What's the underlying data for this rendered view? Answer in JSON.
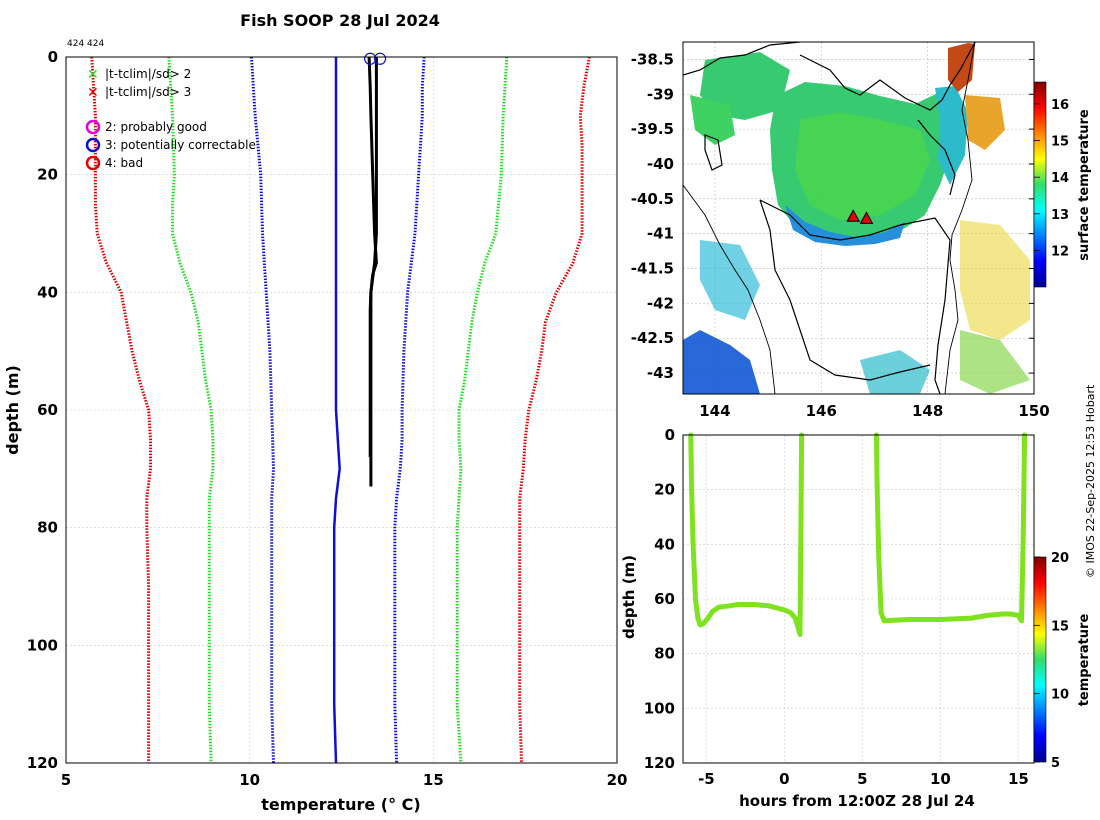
{
  "figure": {
    "title": "Fish SOOP 28 Jul 2024",
    "id_text": "424 424",
    "copyright": "© IMOS 22-Sep-2025 12:53 Hobart"
  },
  "colors": {
    "red": "#e00000",
    "green": "#22dd22",
    "blue": "#1010d0",
    "black": "#000000",
    "magenta": "#e000e0",
    "trace": "#7ee21e",
    "land": "#ffffff"
  },
  "chart_data": [
    {
      "type": "line",
      "name": "profile",
      "xlabel": "temperature (° C)",
      "ylabel": "depth (m)",
      "xlim": [
        5,
        20
      ],
      "ylim": [
        120,
        0
      ],
      "xticks": [
        5,
        10,
        15,
        20
      ],
      "yticks": [
        0,
        20,
        40,
        60,
        80,
        100,
        120
      ],
      "grid": true,
      "legend": {
        "markers": [
          {
            "symbol": "x",
            "label": "|t-tclim|/sd> 2",
            "color": "#22dd22"
          },
          {
            "symbol": "x",
            "label": "|t-tclim|/sd> 3",
            "color": "#e00000"
          }
        ],
        "flags": [
          {
            "symbol": "circle",
            "label": "2: probably good",
            "color": "#e000e0"
          },
          {
            "symbol": "circle",
            "label": "3: potentially correctable",
            "color": "#1010d0"
          },
          {
            "symbol": "circle",
            "label": "4: bad",
            "color": "#e00000"
          }
        ]
      },
      "series": [
        {
          "name": "clim -3sd",
          "color": "#e00000",
          "style": "dotted",
          "depth": [
            0,
            5,
            10,
            20,
            25,
            30,
            35,
            40,
            45,
            50,
            55,
            60,
            65,
            70,
            75,
            80,
            90,
            100,
            110,
            120
          ],
          "temp": [
            5.7,
            5.75,
            5.8,
            5.8,
            5.8,
            5.85,
            6.1,
            6.5,
            6.65,
            6.8,
            7.0,
            7.25,
            7.3,
            7.3,
            7.2,
            7.2,
            7.25,
            7.25,
            7.25,
            7.25
          ]
        },
        {
          "name": "clim -2sd",
          "color": "#22dd22",
          "style": "dotted",
          "depth": [
            0,
            5,
            10,
            20,
            25,
            30,
            35,
            40,
            45,
            50,
            55,
            60,
            65,
            70,
            75,
            80,
            90,
            100,
            110,
            120
          ],
          "temp": [
            7.8,
            7.85,
            7.9,
            7.95,
            7.9,
            7.9,
            8.1,
            8.4,
            8.6,
            8.7,
            8.8,
            8.95,
            9.0,
            9.0,
            8.9,
            8.9,
            8.9,
            8.9,
            8.9,
            8.95
          ]
        },
        {
          "name": "clim -1sd",
          "color": "#1010d0",
          "style": "dotted",
          "depth": [
            0,
            5,
            10,
            20,
            30,
            40,
            50,
            60,
            70,
            75,
            80,
            90,
            100,
            110,
            120
          ],
          "temp": [
            10.05,
            10.1,
            10.15,
            10.3,
            10.35,
            10.45,
            10.55,
            10.6,
            10.65,
            10.6,
            10.6,
            10.6,
            10.6,
            10.6,
            10.65
          ]
        },
        {
          "name": "clim mean",
          "color": "#1010d0",
          "style": "solid",
          "depth": [
            0,
            10,
            20,
            30,
            40,
            50,
            60,
            65,
            70,
            75,
            80,
            90,
            100,
            110,
            120
          ],
          "temp": [
            12.35,
            12.35,
            12.35,
            12.35,
            12.35,
            12.35,
            12.35,
            12.4,
            12.45,
            12.35,
            12.3,
            12.3,
            12.3,
            12.3,
            12.35
          ]
        },
        {
          "name": "clim +1sd",
          "color": "#1010d0",
          "style": "dotted",
          "depth": [
            0,
            5,
            10,
            20,
            30,
            40,
            50,
            60,
            65,
            70,
            75,
            80,
            90,
            100,
            110,
            120
          ],
          "temp": [
            14.75,
            14.7,
            14.7,
            14.6,
            14.5,
            14.3,
            14.2,
            14.15,
            14.15,
            14.1,
            14.0,
            13.95,
            13.95,
            13.95,
            13.95,
            14.0
          ]
        },
        {
          "name": "clim +2sd",
          "color": "#22dd22",
          "style": "dotted",
          "depth": [
            0,
            5,
            10,
            20,
            30,
            35,
            40,
            45,
            50,
            55,
            60,
            65,
            70,
            75,
            80,
            90,
            100,
            110,
            120
          ],
          "temp": [
            17.0,
            16.95,
            16.9,
            16.85,
            16.7,
            16.4,
            16.2,
            16.05,
            15.95,
            15.85,
            15.7,
            15.7,
            15.75,
            15.7,
            15.65,
            15.65,
            15.65,
            15.65,
            15.75
          ]
        },
        {
          "name": "clim +3sd",
          "color": "#e00000",
          "style": "dotted",
          "depth": [
            0,
            5,
            10,
            15,
            20,
            25,
            30,
            35,
            40,
            45,
            50,
            55,
            60,
            65,
            70,
            75,
            80,
            90,
            100,
            110,
            120
          ],
          "temp": [
            19.25,
            19.1,
            19.0,
            19.05,
            19.05,
            19.05,
            19.05,
            18.8,
            18.35,
            18.05,
            17.95,
            17.8,
            17.6,
            17.5,
            17.45,
            17.35,
            17.35,
            17.35,
            17.35,
            17.35,
            17.4
          ]
        },
        {
          "name": "profile 1",
          "color": "#000000",
          "style": "solid",
          "depth": [
            0,
            10,
            20,
            30,
            35,
            40,
            43,
            50,
            60,
            68
          ],
          "temp": [
            13.45,
            13.45,
            13.45,
            13.45,
            13.4,
            13.3,
            13.28,
            13.28,
            13.28,
            13.28
          ]
        },
        {
          "name": "profile 2",
          "color": "#000000",
          "style": "solid",
          "depth": [
            0,
            5,
            10,
            20,
            30,
            35,
            37,
            40,
            50,
            60,
            70,
            73
          ],
          "temp": [
            13.25,
            13.28,
            13.3,
            13.35,
            13.4,
            13.45,
            13.35,
            13.3,
            13.3,
            13.3,
            13.3,
            13.3
          ]
        }
      ],
      "flags": [
        {
          "temp": 13.28,
          "depth": 0.3,
          "flag": 3
        },
        {
          "temp": 13.55,
          "depth": 0.3,
          "flag": 3
        }
      ]
    },
    {
      "type": "heatmap",
      "name": "map",
      "xlim": [
        143.4,
        150.0
      ],
      "ylim": [
        -43.3,
        -38.25
      ],
      "xticks": [
        144,
        146,
        148,
        150
      ],
      "yticks": [
        -38.5,
        -39,
        -39.5,
        -40,
        -40.5,
        -41,
        -41.5,
        -42,
        -42.5,
        -43
      ],
      "colorbar": {
        "label": "surface temperature",
        "range": [
          11.0,
          16.6
        ],
        "ticks": [
          12,
          13,
          14,
          15,
          16
        ]
      },
      "points": [
        {
          "lon": 146.6,
          "lat": -40.75,
          "marker": "triangle",
          "color": "#e00000"
        },
        {
          "lon": 146.85,
          "lat": -40.78,
          "marker": "triangle",
          "color": "#e00000"
        }
      ]
    },
    {
      "type": "scatter",
      "name": "depth-time",
      "xlabel": "hours from 12:00Z 28 Jul 24",
      "ylabel": "depth (m)",
      "xlim": [
        -6.5,
        16
      ],
      "ylim": [
        120,
        0
      ],
      "xticks": [
        -5,
        0,
        5,
        10,
        15
      ],
      "yticks": [
        0,
        20,
        40,
        60,
        80,
        100,
        120
      ],
      "colorbar": {
        "label": "temperature",
        "range": [
          5,
          20
        ],
        "ticks": [
          5,
          10,
          15,
          20
        ]
      },
      "color_value": 13.5,
      "segments": [
        {
          "hours": [
            -6.0,
            -5.95,
            -5.85,
            -5.7,
            -5.55,
            -5.4,
            -5.2,
            -4.9,
            -4.6,
            -4.2,
            -3.5,
            -3.0,
            -2.0,
            -1.0,
            0.0,
            0.4,
            0.7,
            0.85,
            1.0,
            1.05,
            1.1
          ],
          "depth": [
            0,
            20,
            40,
            60,
            67,
            69.5,
            69,
            67,
            64.5,
            63,
            62.5,
            62,
            62,
            62.5,
            64,
            65,
            67,
            70,
            73,
            40,
            0
          ]
        },
        {
          "hours": [
            5.9,
            5.95,
            6.05,
            6.2,
            6.4,
            7,
            8,
            10,
            12,
            13,
            14,
            14.5,
            15,
            15.1,
            15.2,
            15.3,
            15.4
          ],
          "depth": [
            0,
            20,
            45,
            65,
            68,
            67.8,
            67.5,
            67.5,
            67,
            66,
            65.5,
            65.5,
            66,
            67,
            68,
            40,
            0
          ]
        }
      ]
    }
  ]
}
